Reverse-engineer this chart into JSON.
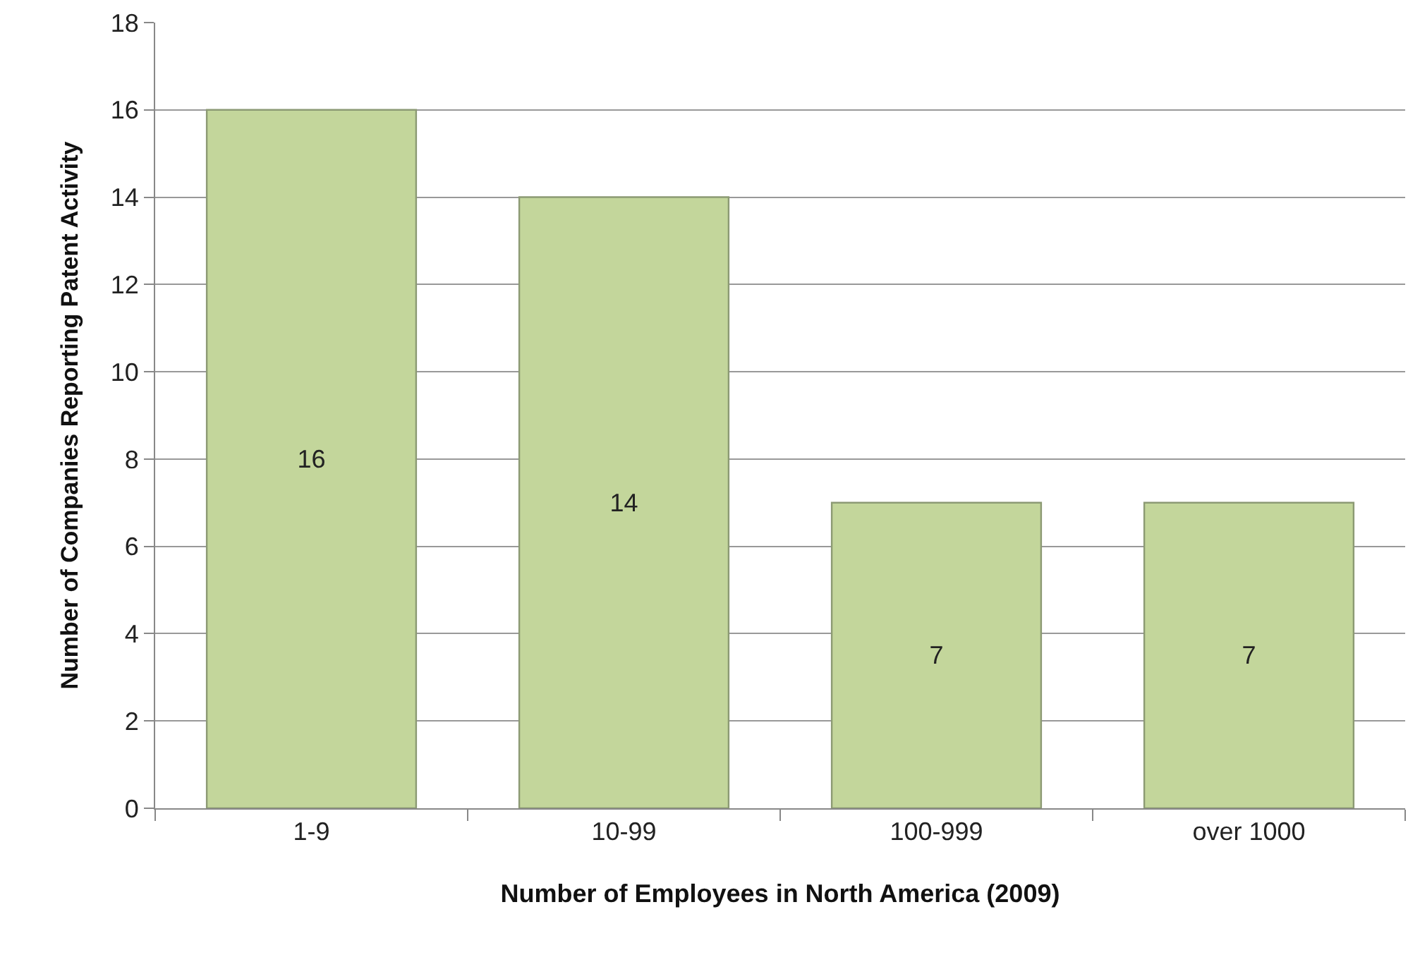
{
  "chart_data": {
    "type": "bar",
    "xlabel": "Number of Employees in North America (2009)",
    "ylabel": "Number of Companies Reporting Patent Activity",
    "categories": [
      "1-9",
      "10-99",
      "100-999",
      "over 1000"
    ],
    "values": [
      16,
      14,
      7,
      7
    ],
    "color": "#c3d69b",
    "ylim": [
      0,
      18
    ],
    "yticks": [
      0,
      2,
      4,
      6,
      8,
      10,
      12,
      14,
      16,
      18
    ],
    "grid": "y",
    "data_labels": true
  }
}
